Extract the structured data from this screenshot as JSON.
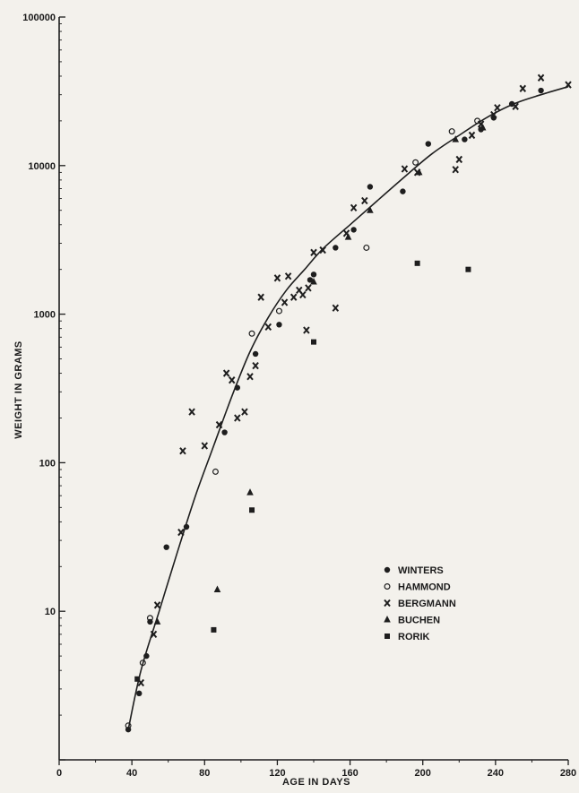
{
  "chart_data": {
    "type": "scatter",
    "title": "",
    "xlabel": "AGE IN DAYS",
    "ylabel": "WEIGHT IN GRAMS",
    "xlim": [
      0,
      280
    ],
    "ylim": [
      1,
      100000
    ],
    "yscale": "log",
    "grid": false,
    "legend_position": "bottom-right",
    "x_tick_labels": [
      "0",
      "40",
      "80",
      "120",
      "160",
      "200",
      "240",
      "280"
    ],
    "y_tick_labels": [
      "10",
      "100",
      "1000",
      "10000",
      "100000"
    ],
    "series": [
      {
        "name": "WINTERS",
        "marker": "filled-circle",
        "points": [
          [
            38,
            1.6
          ],
          [
            44,
            2.8
          ],
          [
            48,
            5
          ],
          [
            50,
            8.5
          ],
          [
            59,
            27
          ],
          [
            70,
            37
          ],
          [
            91,
            160
          ],
          [
            98,
            320
          ],
          [
            108,
            540
          ],
          [
            121,
            850
          ],
          [
            138,
            1700
          ],
          [
            140,
            1850
          ],
          [
            152,
            2800
          ],
          [
            162,
            3700
          ],
          [
            171,
            7200
          ],
          [
            189,
            6700
          ],
          [
            203,
            14000
          ],
          [
            223,
            15000
          ],
          [
            232,
            17500
          ],
          [
            239,
            21000
          ],
          [
            249,
            26000
          ],
          [
            265,
            32000
          ]
        ]
      },
      {
        "name": "HAMMOND",
        "marker": "open-circle",
        "points": [
          [
            38,
            1.7
          ],
          [
            46,
            4.5
          ],
          [
            50,
            9
          ],
          [
            86,
            87
          ],
          [
            106,
            740
          ],
          [
            121,
            1050
          ],
          [
            169,
            2800
          ],
          [
            196,
            10500
          ],
          [
            216,
            17000
          ],
          [
            230,
            20000
          ]
        ]
      },
      {
        "name": "BERGMANN",
        "marker": "x",
        "points": [
          [
            45,
            3.3
          ],
          [
            52,
            7
          ],
          [
            54,
            11
          ],
          [
            67,
            34
          ],
          [
            68,
            120
          ],
          [
            73,
            220
          ],
          [
            80,
            130
          ],
          [
            88,
            180
          ],
          [
            92,
            400
          ],
          [
            95,
            360
          ],
          [
            98,
            200
          ],
          [
            102,
            220
          ],
          [
            105,
            380
          ],
          [
            108,
            450
          ],
          [
            111,
            1300
          ],
          [
            115,
            820
          ],
          [
            120,
            1750
          ],
          [
            124,
            1200
          ],
          [
            126,
            1800
          ],
          [
            129,
            1300
          ],
          [
            132,
            1450
          ],
          [
            134,
            1350
          ],
          [
            136,
            780
          ],
          [
            137,
            1500
          ],
          [
            140,
            2600
          ],
          [
            145,
            2700
          ],
          [
            152,
            1100
          ],
          [
            158,
            3500
          ],
          [
            162,
            5200
          ],
          [
            168,
            5800
          ],
          [
            190,
            9500
          ],
          [
            197,
            9000
          ],
          [
            218,
            9400
          ],
          [
            220,
            11000
          ],
          [
            227,
            16000
          ],
          [
            232,
            19000
          ],
          [
            239,
            22000
          ],
          [
            241,
            24500
          ],
          [
            251,
            25000
          ],
          [
            255,
            33000
          ],
          [
            265,
            39000
          ],
          [
            280,
            35000
          ]
        ]
      },
      {
        "name": "BUCHEN",
        "marker": "filled-triangle",
        "points": [
          [
            54,
            8.5
          ],
          [
            87,
            14
          ],
          [
            105,
            63
          ],
          [
            140,
            1650
          ],
          [
            159,
            3300
          ],
          [
            171,
            5000
          ],
          [
            198,
            9000
          ],
          [
            218,
            15000
          ],
          [
            233,
            18000
          ]
        ]
      },
      {
        "name": "RORIK",
        "marker": "filled-square",
        "points": [
          [
            43,
            3.5
          ],
          [
            85,
            7.5
          ],
          [
            106,
            48
          ],
          [
            140,
            650
          ],
          [
            197,
            2200
          ],
          [
            225,
            2000
          ]
        ]
      }
    ],
    "fit_curve": [
      [
        38,
        1.6
      ],
      [
        45,
        4
      ],
      [
        55,
        10
      ],
      [
        65,
        25
      ],
      [
        75,
        60
      ],
      [
        85,
        130
      ],
      [
        95,
        280
      ],
      [
        105,
        560
      ],
      [
        115,
        950
      ],
      [
        125,
        1450
      ],
      [
        135,
        2000
      ],
      [
        145,
        2750
      ],
      [
        160,
        4000
      ],
      [
        175,
        5800
      ],
      [
        190,
        8400
      ],
      [
        205,
        12000
      ],
      [
        220,
        16000
      ],
      [
        235,
        21000
      ],
      [
        250,
        26000
      ],
      [
        265,
        30000
      ],
      [
        280,
        34000
      ]
    ]
  }
}
